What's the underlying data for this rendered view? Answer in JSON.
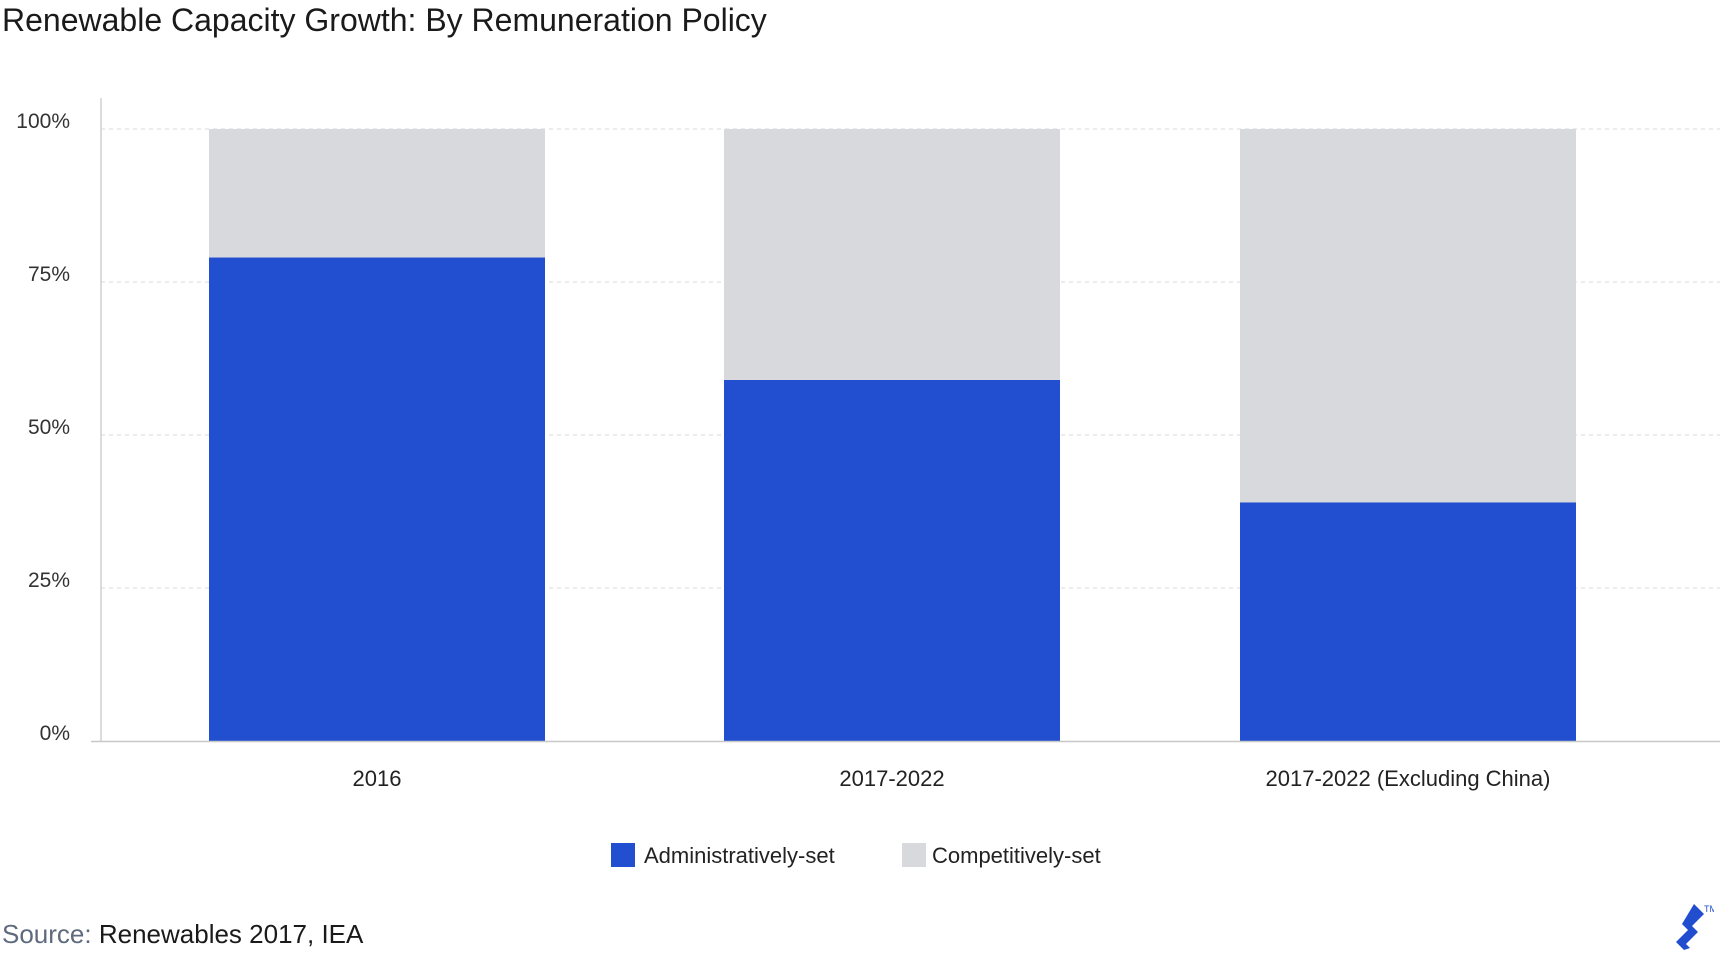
{
  "title": "Renewable Capacity Growth: By Remuneration Policy",
  "source": {
    "label": "Source:",
    "text": "Renewables 2017, IEA"
  },
  "colors": {
    "administratively_set": "#214fcf",
    "competitively_set": "#d8d9dc",
    "brand": "#204ecf"
  },
  "logo_icon": "toptal-logo-icon",
  "chart_data": {
    "type": "bar",
    "stacked": true,
    "categories": [
      "2016",
      "2017-2022",
      "2017-2022 (Excluding China)"
    ],
    "series": [
      {
        "name": "Administratively-set",
        "values": [
          79,
          59,
          39
        ]
      },
      {
        "name": "Competitively-set",
        "values": [
          21,
          41,
          61
        ]
      }
    ],
    "yticks": [
      "0%",
      "25%",
      "50%",
      "75%",
      "100%"
    ],
    "ylim": [
      0,
      100
    ],
    "grid": true,
    "legend": "bottom-center"
  }
}
